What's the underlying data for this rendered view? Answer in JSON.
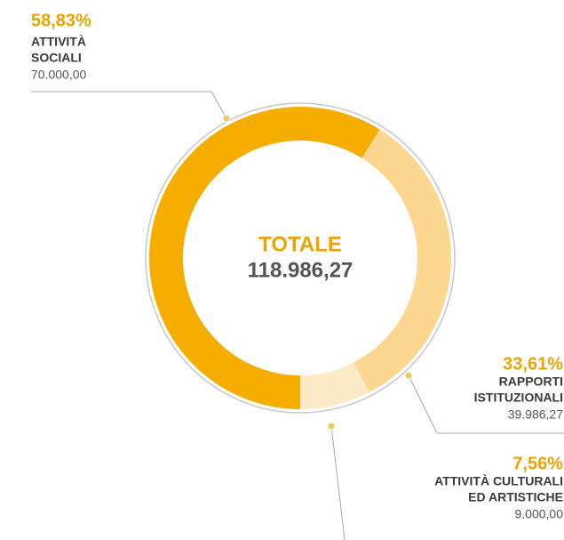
{
  "chart_data": {
    "type": "donut",
    "categories": [
      [
        "ATTIVITÀ",
        "SOCIALI"
      ],
      [
        "RAPPORTI",
        "ISTITUZIONALI"
      ],
      [
        "ATTIVITÀ CULTURALI",
        "ED ARTISTICHE"
      ]
    ],
    "values": [
      70000,
      39986.27,
      9000
    ],
    "value_labels": [
      "70.000,00",
      "39.986,27",
      "9.000,00"
    ],
    "percentages": [
      58.83,
      33.61,
      7.56
    ],
    "percentage_labels": [
      "58,83%",
      "33,61%",
      "7,56%"
    ],
    "colors": [
      "#f5ae00",
      "#fdd68f",
      "#fdeac6"
    ],
    "center_title": "TOTALE",
    "total": {
      "value": 118986.27,
      "label": "118.986,27"
    }
  }
}
